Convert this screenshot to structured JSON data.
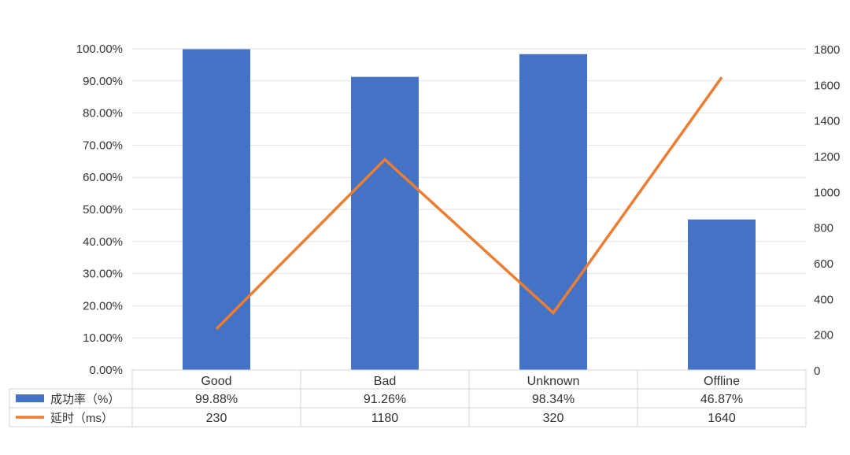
{
  "chart_data": {
    "type": "bar",
    "categories": [
      "Good",
      "Bad",
      "Unknown",
      "Offline"
    ],
    "series": [
      {
        "name": "成功率（%）",
        "type": "bar",
        "axis": "left",
        "values": [
          99.88,
          91.26,
          98.34,
          46.87
        ],
        "display": [
          "99.88%",
          "91.26%",
          "98.34%",
          "46.87%"
        ],
        "color": "#4472C4"
      },
      {
        "name": "延时（ms）",
        "type": "line",
        "axis": "right",
        "values": [
          230,
          1180,
          320,
          1640
        ],
        "display": [
          "230",
          "1180",
          "320",
          "1640"
        ],
        "color": "#ED7D31"
      }
    ],
    "y_left": {
      "min": 0,
      "max": 100,
      "step": 10,
      "tick_labels": [
        "0.00%",
        "10.00%",
        "20.00%",
        "30.00%",
        "40.00%",
        "50.00%",
        "60.00%",
        "70.00%",
        "80.00%",
        "90.00%",
        "100.00%"
      ]
    },
    "y_right": {
      "min": 0,
      "max": 1800,
      "step": 200,
      "tick_labels": [
        "0",
        "200",
        "400",
        "600",
        "800",
        "1000",
        "1200",
        "1400",
        "1600",
        "1800"
      ]
    },
    "grid": true,
    "legend": "data-table-below"
  }
}
